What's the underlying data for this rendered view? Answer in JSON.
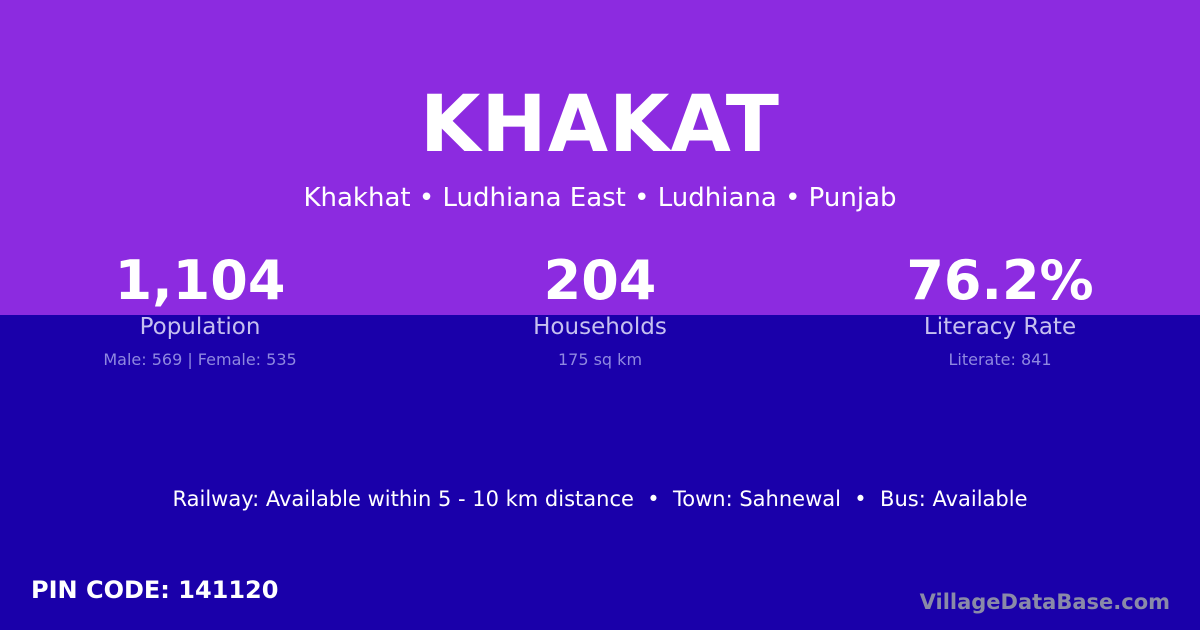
{
  "title": "KHAKAT",
  "subtitle": "Khakhat • Ludhiana East • Ludhiana • Punjab",
  "stats": [
    {
      "value": "1,104",
      "label": "Population",
      "detail": "Male: 569 | Female: 535"
    },
    {
      "value": "204",
      "label": "Households",
      "detail": "175 sq km"
    },
    {
      "value": "76.2%",
      "label": "Literacy Rate",
      "detail": "Literate: 841"
    }
  ],
  "info": "Railway: Available within 5 - 10 km distance  •  Town: Sahnewal  •  Bus: Available",
  "pin": "PIN CODE: 141120",
  "brand": "VillageDataBase.com",
  "colors": {
    "top": "#8c2be0",
    "bottom": "#1a00aa"
  }
}
